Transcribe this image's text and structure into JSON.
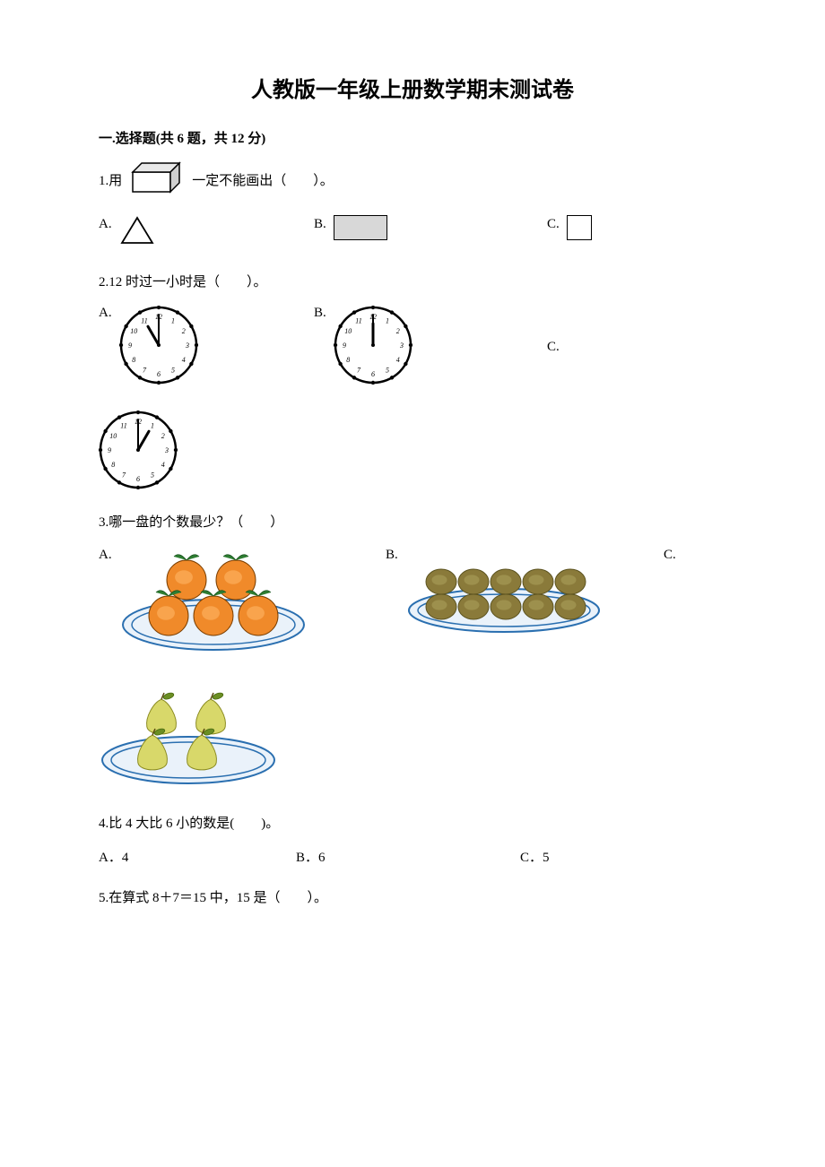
{
  "title": "人教版一年级上册数学期末测试卷",
  "section1": {
    "header": "一.选择题(共 6 题，共 12 分)",
    "q1": {
      "prefix": "1.用",
      "suffix": "一定不能画出（　　）。",
      "optA": "A.",
      "optB": "B.",
      "optC": "C."
    },
    "q2": {
      "text": "2.12 时过一小时是（　　）。",
      "optA": "A.",
      "optB": "B.",
      "optC": "C.",
      "clocks": {
        "a_hour": 11,
        "a_min": 0,
        "b_hour": 12,
        "b_min": 0,
        "c_hour": 1,
        "c_min": 0
      }
    },
    "q3": {
      "text": "3.哪一盘的个数最少？（　　）",
      "optA": "A.",
      "optB": "B.",
      "optC": "C.",
      "plates": {
        "a_count": 5,
        "a_color": "#f08a2a",
        "a_leaf": "#2e7d32",
        "b_count": 10,
        "b_color": "#8a7a3a",
        "c_count": 4,
        "c_color": "#d8d86a",
        "c_leaf": "#6b8e23"
      }
    },
    "q4": {
      "text": "4.比 4 大比 6 小的数是(　　)。",
      "optA": "A．4",
      "optB": "B．6",
      "optC": "C．5"
    },
    "q5": {
      "text": "5.在算式 8＋7＝15 中，15 是（　　）。"
    }
  },
  "style": {
    "text_color": "#000000",
    "bg_color": "#ffffff",
    "title_fontsize": 24,
    "body_fontsize": 15,
    "plate_rim": "#2a6fb0",
    "plate_fill": "#eaf2fa"
  }
}
